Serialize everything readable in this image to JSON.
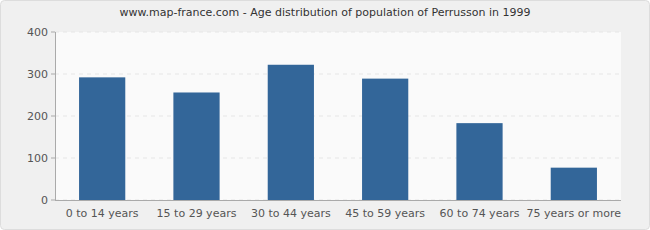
{
  "chart_data": {
    "type": "bar",
    "title": "www.map-france.com - Age distribution of population of Perrusson in 1999",
    "categories": [
      "0 to 14 years",
      "15 to 29 years",
      "30 to 44 years",
      "45 to 59 years",
      "60 to 74 years",
      "75 years or more"
    ],
    "values": [
      292,
      256,
      322,
      289,
      183,
      77
    ],
    "color": "#336699",
    "ylim": [
      0,
      400
    ],
    "yticks": [
      0,
      100,
      200,
      300,
      400
    ],
    "grid": true
  }
}
